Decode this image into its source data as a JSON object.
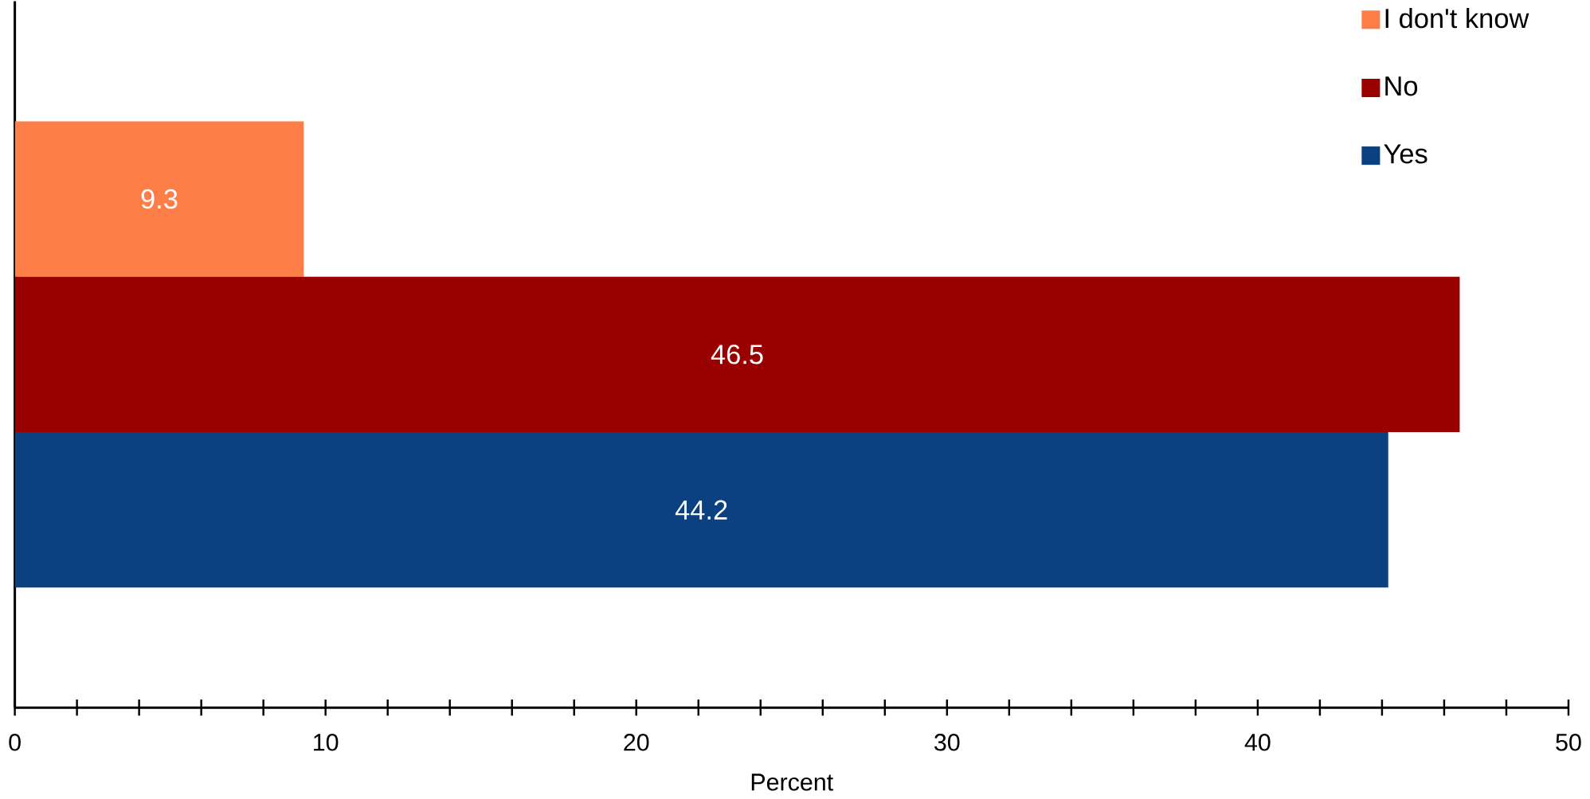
{
  "chart_data": {
    "type": "bar",
    "orientation": "horizontal",
    "xlabel": "Percent",
    "categories": [
      null
    ],
    "series": [
      {
        "name": "I don't know",
        "color": "#fd7e47",
        "values": [
          9.3
        ]
      },
      {
        "name": "No",
        "color": "#990000",
        "values": [
          46.5
        ]
      },
      {
        "name": "Yes",
        "color": "#0b4081",
        "values": [
          44.2
        ]
      }
    ],
    "xlim": [
      0,
      50
    ],
    "xticks": [
      0,
      {
        "value": 2,
        "label": null
      },
      {
        "value": 4,
        "label": null
      },
      {
        "value": 6,
        "label": null
      },
      {
        "value": 8,
        "label": null
      },
      10,
      {
        "value": 12,
        "label": null
      },
      {
        "value": 14,
        "label": null
      },
      {
        "value": 16,
        "label": null
      },
      {
        "value": 18,
        "label": null
      },
      20,
      {
        "value": 22,
        "label": null
      },
      {
        "value": 24,
        "label": null
      },
      {
        "value": 26,
        "label": null
      },
      {
        "value": 28,
        "label": null
      },
      30,
      {
        "value": 32,
        "label": null
      },
      {
        "value": 34,
        "label": null
      },
      {
        "value": 36,
        "label": null
      },
      {
        "value": 38,
        "label": null
      },
      40,
      {
        "value": 42,
        "label": null
      },
      {
        "value": 44,
        "label": null
      },
      {
        "value": 46,
        "label": null
      },
      {
        "value": 48,
        "label": null
      },
      50
    ],
    "data_labels": true,
    "grid": false,
    "legend": "top right",
    "tick_labels": "x"
  }
}
